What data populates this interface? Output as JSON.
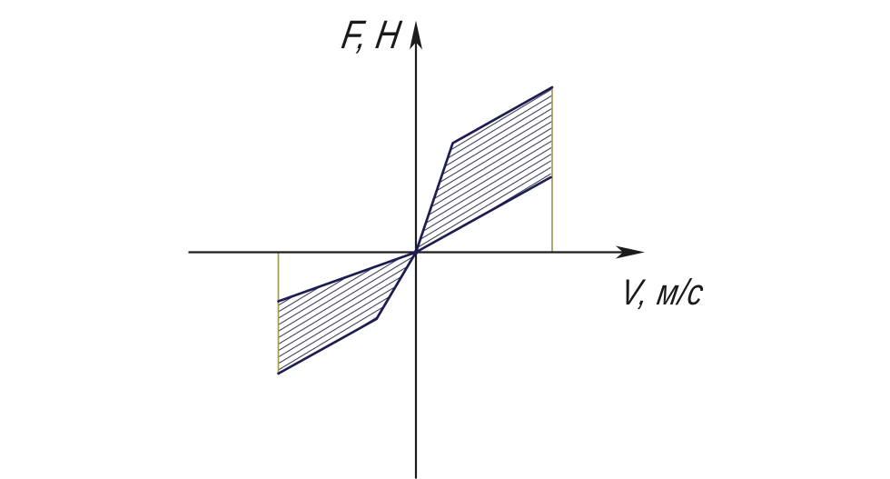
{
  "labels": {
    "y": "F, H",
    "x": "V, м/с"
  },
  "colors": {
    "background": "#ffffff",
    "axis": "#1c1c1c",
    "band_edge": "#1d1d52",
    "hatch": "#35354f",
    "guide": "#a59a58",
    "text": "#1a1a1a"
  },
  "chart_data": {
    "type": "area",
    "title": "",
    "xlabel": "V, м/с",
    "ylabel": "F, H",
    "grid": false,
    "legend": false,
    "axes_numeric_labels": false,
    "units": "relative units; no tick values shown, V normalized so band outer edge = 1",
    "x_range": [
      -1.67,
      1.68
    ],
    "y_range": [
      -1.66,
      1.7
    ],
    "series": [
      {
        "name": "positive-band-upper-boundary",
        "points": [
          [
            0,
            0
          ],
          [
            0.27,
            0.8
          ],
          [
            1.0,
            1.21
          ]
        ]
      },
      {
        "name": "positive-band-lower-boundary",
        "points": [
          [
            0,
            0
          ],
          [
            0.99,
            0.55
          ]
        ]
      },
      {
        "name": "negative-band-upper-boundary",
        "points": [
          [
            0,
            0
          ],
          [
            -1.01,
            -0.36
          ]
        ]
      },
      {
        "name": "negative-band-lower-boundary",
        "points": [
          [
            0,
            0
          ],
          [
            -0.29,
            -0.49
          ],
          [
            -1.01,
            -0.89
          ]
        ]
      }
    ],
    "regions": [
      {
        "name": "positive-hatched-band",
        "polygon": [
          [
            0,
            0
          ],
          [
            0.27,
            0.8
          ],
          [
            1.0,
            1.21
          ],
          [
            0.99,
            0.55
          ]
        ]
      },
      {
        "name": "negative-hatched-band",
        "polygon": [
          [
            0,
            0
          ],
          [
            -1.01,
            -0.36
          ],
          [
            -1.01,
            -0.89
          ],
          [
            -0.29,
            -0.49
          ]
        ]
      }
    ],
    "guides": [
      {
        "name": "right-guide-line",
        "from": [
          1.0,
          1.21
        ],
        "to": [
          1.0,
          0.0
        ]
      },
      {
        "name": "left-guide-line",
        "from": [
          -1.01,
          0.0
        ],
        "to": [
          -1.01,
          -0.89
        ]
      }
    ]
  }
}
